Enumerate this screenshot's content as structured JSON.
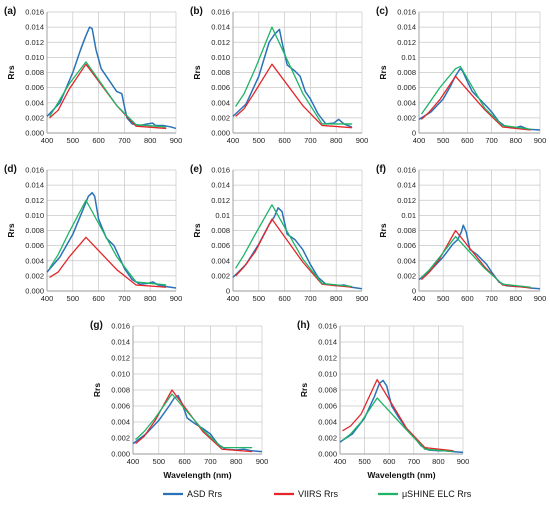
{
  "figure": {
    "legend": [
      {
        "key": "asd",
        "label": "ASD Rrs",
        "color": "#2a72b8"
      },
      {
        "key": "viirs",
        "label": "VIIRS Rrs",
        "color": "#e3262a"
      },
      {
        "key": "ushine",
        "label": "μSHINE ELC Rrs",
        "color": "#1fb367"
      }
    ],
    "colors": {
      "grid": "#c8c8c8",
      "axis": "#9a9a9a",
      "orange_overlap": "#f0a020"
    }
  },
  "chart_data": [
    {
      "panel": "(a)",
      "type": "line",
      "xlabel": "",
      "ylabel": "Rrs",
      "xlim": [
        400,
        900
      ],
      "ylim": [
        0,
        0.016
      ],
      "xticks": [
        "400",
        "500",
        "600",
        "700",
        "800",
        "900"
      ],
      "yticks": [
        "0.000",
        "0.002",
        "0.004",
        "0.006",
        "0.008",
        "0.010",
        "0.012",
        "0.014",
        "0.016"
      ],
      "series": [
        {
          "name": "ASD Rrs",
          "x": [
            400,
            450,
            500,
            530,
            550,
            565,
            575,
            590,
            610,
            640,
            670,
            690,
            700,
            710,
            730,
            760,
            790,
            810,
            820,
            850,
            880,
            900
          ],
          "y": [
            0.0022,
            0.004,
            0.008,
            0.011,
            0.0128,
            0.014,
            0.0138,
            0.011,
            0.0085,
            0.007,
            0.0055,
            0.0052,
            0.0035,
            0.002,
            0.0012,
            0.001,
            0.0012,
            0.0013,
            0.001,
            0.001,
            0.0008,
            0.0006
          ]
        },
        {
          "name": "VIIRS Rrs",
          "x": [
            410,
            443,
            486,
            551,
            671,
            745,
            862
          ],
          "y": [
            0.002,
            0.003,
            0.0058,
            0.0091,
            0.0036,
            0.0009,
            0.0006
          ]
        },
        {
          "name": "μSHINE ELC Rrs",
          "x": [
            410,
            443,
            486,
            551,
            671,
            745,
            862
          ],
          "y": [
            0.0022,
            0.004,
            0.0065,
            0.0094,
            0.0036,
            0.0011,
            0.0008
          ]
        }
      ]
    },
    {
      "panel": "(b)",
      "type": "line",
      "xlabel": "",
      "ylabel": "Rrs",
      "xlim": [
        400,
        900
      ],
      "ylim": [
        0,
        0.016
      ],
      "xticks": [
        "400",
        "500",
        "600",
        "700",
        "800",
        "900"
      ],
      "yticks": [
        "0.000",
        "0.002",
        "0.004",
        "0.006",
        "0.008",
        "0.010",
        "0.012",
        "0.014",
        "0.016"
      ],
      "series": [
        {
          "name": "ASD Rrs",
          "x": [
            400,
            450,
            500,
            540,
            560,
            580,
            590,
            610,
            640,
            660,
            680,
            700,
            730,
            760,
            790,
            810,
            830,
            860
          ],
          "y": [
            0.0022,
            0.0038,
            0.0075,
            0.012,
            0.013,
            0.0137,
            0.012,
            0.009,
            0.0082,
            0.0075,
            0.0055,
            0.0045,
            0.0025,
            0.0012,
            0.0013,
            0.0018,
            0.0012,
            0.0008
          ]
        },
        {
          "name": "VIIRS Rrs",
          "x": [
            410,
            443,
            486,
            551,
            671,
            745,
            862
          ],
          "y": [
            0.0022,
            0.0032,
            0.0055,
            0.0091,
            0.0036,
            0.001,
            0.0007
          ]
        },
        {
          "name": "μSHINE ELC Rrs",
          "x": [
            410,
            443,
            486,
            551,
            671,
            745,
            862
          ],
          "y": [
            0.0035,
            0.0052,
            0.0085,
            0.014,
            0.0052,
            0.0012,
            0.0012
          ]
        }
      ]
    },
    {
      "panel": "(c)",
      "type": "line",
      "xlabel": "",
      "ylabel": "Rrs",
      "xlim": [
        400,
        900
      ],
      "ylim": [
        0,
        0.016
      ],
      "xticks": [
        "400",
        "500",
        "600",
        "700",
        "800",
        "900"
      ],
      "yticks": [
        "0",
        "0.002",
        "0.004",
        "0.006",
        "0.008",
        "0.01",
        "0.012",
        "0.014",
        "0.016"
      ],
      "series": [
        {
          "name": "ASD Rrs",
          "x": [
            400,
            450,
            500,
            530,
            550,
            570,
            580,
            600,
            620,
            650,
            680,
            700,
            730,
            760,
            800,
            820,
            850,
            900
          ],
          "y": [
            0.0018,
            0.0028,
            0.0045,
            0.0062,
            0.0075,
            0.0085,
            0.0082,
            0.0068,
            0.0055,
            0.0045,
            0.0035,
            0.0028,
            0.0015,
            0.0008,
            0.0007,
            0.0009,
            0.0005,
            0.0004
          ]
        },
        {
          "name": "VIIRS Rrs",
          "x": [
            410,
            443,
            486,
            551,
            671,
            745,
            862
          ],
          "y": [
            0.0018,
            0.0028,
            0.0044,
            0.0075,
            0.0031,
            0.0008,
            0.0004
          ]
        },
        {
          "name": "μSHINE ELC Rrs",
          "x": [
            410,
            443,
            486,
            551,
            571,
            671,
            745,
            862
          ],
          "y": [
            0.0025,
            0.004,
            0.006,
            0.0085,
            0.0088,
            0.0033,
            0.001,
            0.0005
          ]
        }
      ]
    },
    {
      "panel": "(d)",
      "type": "line",
      "xlabel": "",
      "ylabel": "Rrs",
      "xlim": [
        400,
        900
      ],
      "ylim": [
        0,
        0.016
      ],
      "xticks": [
        "400",
        "500",
        "600",
        "700",
        "800",
        "900"
      ],
      "yticks": [
        "0.000",
        "0.002",
        "0.004",
        "0.006",
        "0.008",
        "0.010",
        "0.012",
        "0.014",
        "0.016"
      ],
      "series": [
        {
          "name": "ASD Rrs",
          "x": [
            400,
            450,
            500,
            540,
            560,
            575,
            585,
            600,
            630,
            660,
            680,
            700,
            730,
            760,
            790,
            810,
            830,
            860,
            900
          ],
          "y": [
            0.0025,
            0.0045,
            0.0075,
            0.0108,
            0.0125,
            0.013,
            0.0125,
            0.0095,
            0.007,
            0.006,
            0.0045,
            0.003,
            0.0015,
            0.0009,
            0.001,
            0.0012,
            0.0008,
            0.0006,
            0.0004
          ]
        },
        {
          "name": "VIIRS Rrs",
          "x": [
            410,
            443,
            486,
            551,
            671,
            745,
            862
          ],
          "y": [
            0.0018,
            0.0025,
            0.0045,
            0.0071,
            0.0028,
            0.0008,
            0.0005
          ]
        },
        {
          "name": "μSHINE ELC Rrs",
          "x": [
            410,
            443,
            486,
            551,
            671,
            745,
            862
          ],
          "y": [
            0.003,
            0.0048,
            0.0078,
            0.012,
            0.0045,
            0.0012,
            0.0008
          ]
        }
      ]
    },
    {
      "panel": "(e)",
      "type": "line",
      "xlabel": "",
      "ylabel": "Rrs",
      "xlim": [
        400,
        900
      ],
      "ylim": [
        0,
        0.016
      ],
      "xticks": [
        "400",
        "500",
        "600",
        "700",
        "800",
        "900"
      ],
      "yticks": [
        "0",
        "0.002",
        "0.004",
        "0.006",
        "0.008",
        "0.01",
        "0.012",
        "0.014",
        "0.016"
      ],
      "series": [
        {
          "name": "ASD Rrs",
          "x": [
            400,
            450,
            500,
            540,
            560,
            575,
            590,
            610,
            640,
            670,
            700,
            730,
            760,
            800,
            830,
            860,
            900
          ],
          "y": [
            0.0018,
            0.0035,
            0.0062,
            0.0088,
            0.0098,
            0.011,
            0.0105,
            0.0075,
            0.0068,
            0.0055,
            0.0035,
            0.0018,
            0.0009,
            0.0007,
            0.0008,
            0.0005,
            0.0003
          ]
        },
        {
          "name": "VIIRS Rrs",
          "x": [
            410,
            443,
            486,
            551,
            671,
            745,
            862
          ],
          "y": [
            0.002,
            0.0032,
            0.0052,
            0.0095,
            0.0038,
            0.0009,
            0.0005
          ]
        },
        {
          "name": "μSHINE ELC Rrs",
          "x": [
            410,
            443,
            486,
            551,
            671,
            745,
            862
          ],
          "y": [
            0.003,
            0.0048,
            0.0075,
            0.0114,
            0.0042,
            0.001,
            0.0006
          ]
        }
      ]
    },
    {
      "panel": "(f)",
      "type": "line",
      "xlabel": "",
      "ylabel": "Rrs",
      "xlim": [
        400,
        900
      ],
      "ylim": [
        0,
        0.016
      ],
      "xticks": [
        "400",
        "500",
        "600",
        "700",
        "800",
        "900"
      ],
      "yticks": [
        "0",
        "0.002",
        "0.004",
        "0.006",
        "0.008",
        "0.01",
        "0.012",
        "0.014",
        "0.016"
      ],
      "series": [
        {
          "name": "ASD Rrs",
          "x": [
            400,
            450,
            500,
            540,
            560,
            575,
            583,
            595,
            610,
            640,
            680,
            700,
            730,
            760,
            800,
            830,
            860,
            900
          ],
          "y": [
            0.0015,
            0.0028,
            0.0045,
            0.0062,
            0.0068,
            0.0078,
            0.0087,
            0.0078,
            0.0055,
            0.0048,
            0.0035,
            0.0025,
            0.0012,
            0.0007,
            0.0006,
            0.0006,
            0.0004,
            0.0003
          ]
        },
        {
          "name": "VIIRS Rrs",
          "x": [
            410,
            443,
            486,
            551,
            671,
            745,
            862
          ],
          "y": [
            0.0015,
            0.0025,
            0.0043,
            0.008,
            0.0032,
            0.0008,
            0.0004
          ]
        },
        {
          "name": "μSHINE ELC Rrs",
          "x": [
            410,
            443,
            486,
            551,
            671,
            745,
            862
          ],
          "y": [
            0.0018,
            0.0028,
            0.0045,
            0.0072,
            0.003,
            0.0009,
            0.0005
          ]
        }
      ]
    },
    {
      "panel": "(g)",
      "type": "line",
      "xlabel": "Wavelength (nm)",
      "ylabel": "Rrs",
      "xlim": [
        400,
        900
      ],
      "ylim": [
        0,
        0.016
      ],
      "xticks": [
        "400",
        "500",
        "600",
        "700",
        "800",
        "900"
      ],
      "yticks": [
        "0.000",
        "0.002",
        "0.004",
        "0.006",
        "0.008",
        "0.010",
        "0.012",
        "0.014",
        "0.016"
      ],
      "series": [
        {
          "name": "ASD Rrs",
          "x": [
            400,
            450,
            500,
            540,
            560,
            575,
            590,
            610,
            640,
            670,
            700,
            730,
            760,
            800,
            830,
            860,
            900
          ],
          "y": [
            0.0013,
            0.0025,
            0.0042,
            0.006,
            0.007,
            0.0073,
            0.0063,
            0.0045,
            0.0038,
            0.0032,
            0.0025,
            0.0012,
            0.0006,
            0.0005,
            0.0006,
            0.0004,
            0.0003
          ]
        },
        {
          "name": "VIIRS Rrs",
          "x": [
            410,
            443,
            486,
            551,
            671,
            745,
            862
          ],
          "y": [
            0.0013,
            0.0022,
            0.0042,
            0.008,
            0.0028,
            0.0006,
            0.0003
          ]
        },
        {
          "name": "μSHINE ELC Rrs",
          "x": [
            410,
            443,
            486,
            551,
            671,
            745,
            862
          ],
          "y": [
            0.0018,
            0.0028,
            0.0045,
            0.0075,
            0.003,
            0.0008,
            0.0008
          ]
        }
      ]
    },
    {
      "panel": "(h)",
      "type": "line",
      "xlabel": "Wavelength (nm)",
      "ylabel": "Rrs",
      "xlim": [
        400,
        900
      ],
      "ylim": [
        0,
        0.016
      ],
      "xticks": [
        "400",
        "500",
        "600",
        "700",
        "800",
        "900"
      ],
      "yticks": [
        "0.000",
        "0.002",
        "0.004",
        "0.006",
        "0.008",
        "0.010",
        "0.012",
        "0.014",
        "0.016"
      ],
      "series": [
        {
          "name": "ASD Rrs",
          "x": [
            400,
            450,
            500,
            540,
            560,
            575,
            590,
            610,
            640,
            670,
            700,
            730,
            760,
            800,
            830,
            860,
            900
          ],
          "y": [
            0.0015,
            0.0025,
            0.0045,
            0.0072,
            0.0088,
            0.0092,
            0.0085,
            0.006,
            0.0045,
            0.0032,
            0.0022,
            0.001,
            0.0005,
            0.0004,
            0.0004,
            0.0003,
            0.0002
          ]
        },
        {
          "name": "VIIRS Rrs",
          "x": [
            410,
            443,
            486,
            551,
            671,
            745,
            862
          ],
          "y": [
            0.0029,
            0.0035,
            0.005,
            0.0093,
            0.0032,
            0.0008,
            0.0004
          ]
        },
        {
          "name": "μSHINE ELC Rrs",
          "x": [
            410,
            443,
            486,
            551,
            671,
            745,
            862
          ],
          "y": [
            0.0017,
            0.0025,
            0.004,
            0.007,
            0.003,
            0.0006,
            0.0003
          ]
        }
      ]
    }
  ]
}
